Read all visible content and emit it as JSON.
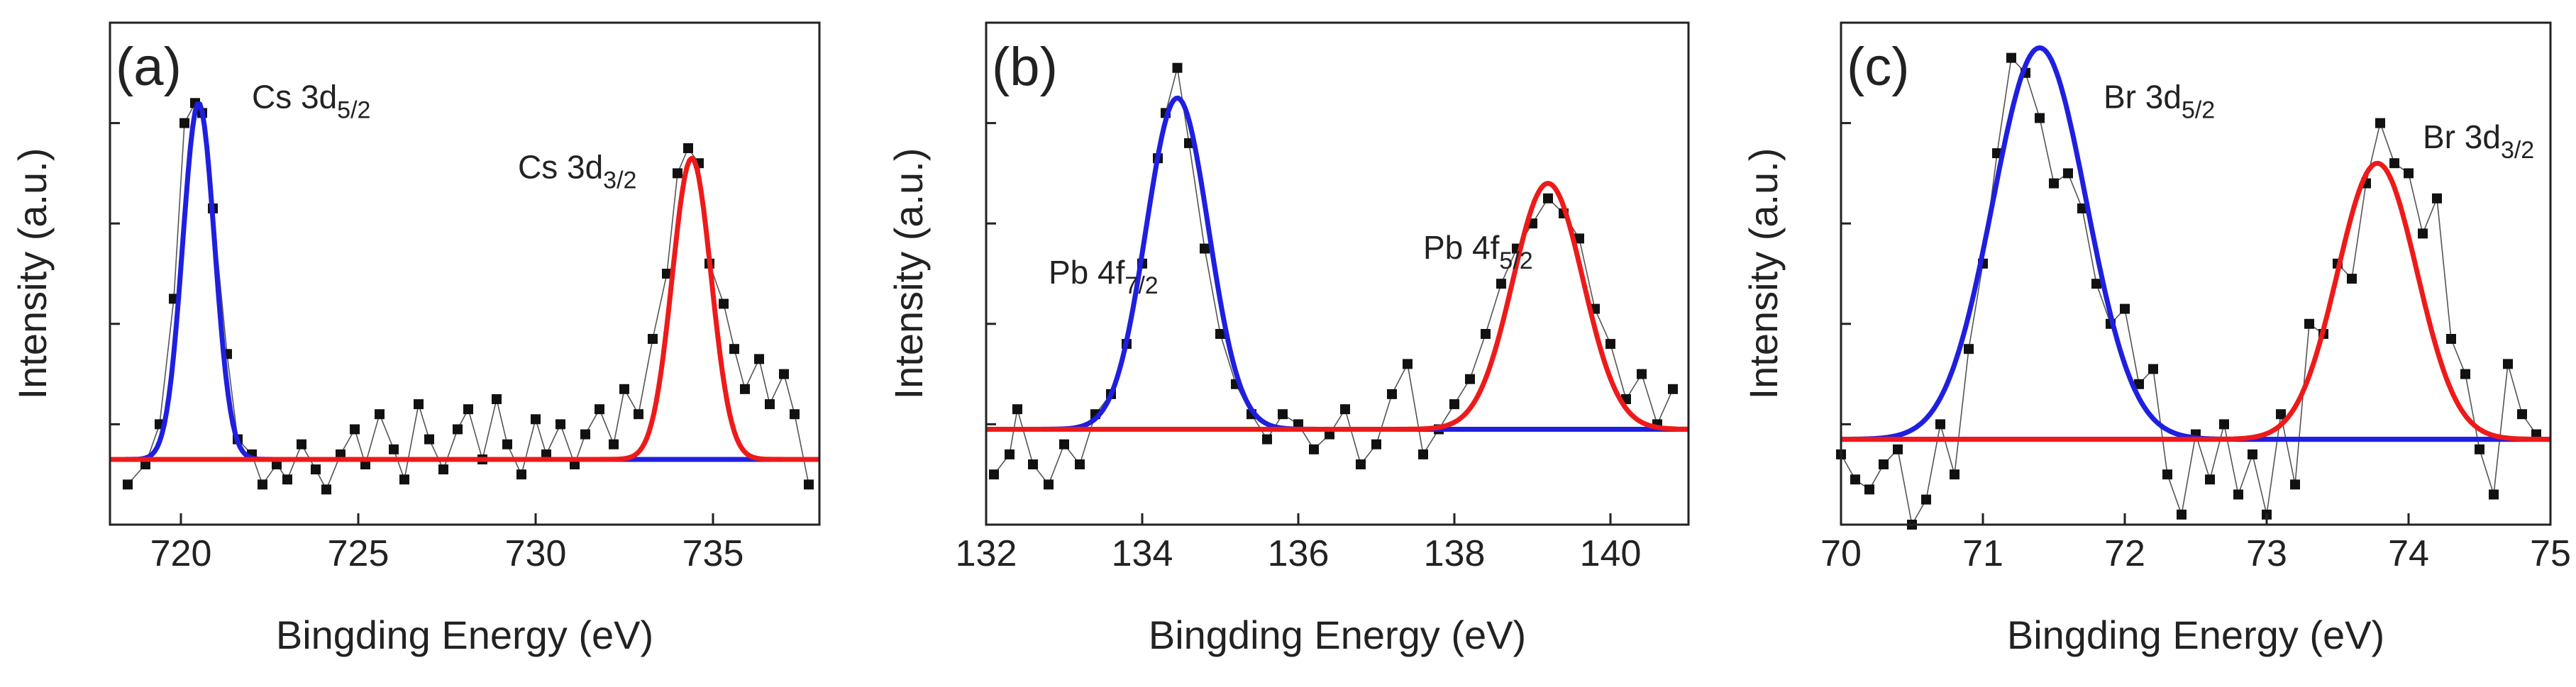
{
  "colors": {
    "fit1": "#1f1fe0",
    "fit2": "#ee1a1a",
    "baseline": "#1f1fe0",
    "points": "#111111",
    "connector": "#555555",
    "frame": "#222222"
  },
  "chart_data": [
    {
      "type": "scatter",
      "panel_label": "(a)",
      "xlabel": "Bingding Energy (eV)",
      "ylabel": "Intensity (a.u.)",
      "xlim": [
        718,
        738
      ],
      "ylim": [
        0,
        100
      ],
      "xticks": [
        720,
        725,
        730,
        735
      ],
      "xtick_labels": [
        "720",
        "725",
        "730",
        "735"
      ],
      "baseline": 13,
      "peaks": [
        {
          "name": "Cs 3d5/2",
          "base": "Cs 3d",
          "sub": "5/2",
          "center": 720.5,
          "height": 71,
          "sigma": 0.45,
          "color_key": "fit1",
          "label_x": 722.0,
          "label_y": 83
        },
        {
          "name": "Cs 3d3/2",
          "base": "Cs 3d",
          "sub": "3/2",
          "center": 734.4,
          "height": 60,
          "sigma": 0.55,
          "color_key": "fit2",
          "label_x": 729.5,
          "label_y": 69
        }
      ],
      "points": [
        [
          718.5,
          8
        ],
        [
          719.0,
          12
        ],
        [
          719.4,
          20
        ],
        [
          719.8,
          45
        ],
        [
          720.1,
          80
        ],
        [
          720.4,
          84
        ],
        [
          720.6,
          82
        ],
        [
          720.9,
          63
        ],
        [
          721.3,
          34
        ],
        [
          721.6,
          17
        ],
        [
          722.0,
          14
        ],
        [
          722.3,
          8
        ],
        [
          722.7,
          12
        ],
        [
          723.0,
          9
        ],
        [
          723.4,
          16
        ],
        [
          723.8,
          11
        ],
        [
          724.1,
          7
        ],
        [
          724.5,
          14
        ],
        [
          724.9,
          19
        ],
        [
          725.2,
          12
        ],
        [
          725.6,
          22
        ],
        [
          726.0,
          15
        ],
        [
          726.3,
          9
        ],
        [
          726.7,
          24
        ],
        [
          727.0,
          17
        ],
        [
          727.4,
          11
        ],
        [
          727.8,
          19
        ],
        [
          728.1,
          23
        ],
        [
          728.5,
          13
        ],
        [
          728.9,
          25
        ],
        [
          729.2,
          16
        ],
        [
          729.6,
          10
        ],
        [
          730.0,
          21
        ],
        [
          730.3,
          14
        ],
        [
          730.7,
          20
        ],
        [
          731.1,
          12
        ],
        [
          731.4,
          18
        ],
        [
          731.8,
          23
        ],
        [
          732.2,
          16
        ],
        [
          732.5,
          27
        ],
        [
          732.9,
          22
        ],
        [
          733.3,
          37
        ],
        [
          733.7,
          50
        ],
        [
          734.0,
          70
        ],
        [
          734.3,
          75
        ],
        [
          734.6,
          72
        ],
        [
          734.9,
          52
        ],
        [
          735.3,
          44
        ],
        [
          735.6,
          35
        ],
        [
          735.9,
          27
        ],
        [
          736.3,
          33
        ],
        [
          736.6,
          24
        ],
        [
          737.0,
          30
        ],
        [
          737.3,
          22
        ],
        [
          737.7,
          8
        ]
      ]
    },
    {
      "type": "scatter",
      "panel_label": "(b)",
      "xlabel": "Bingding Energy (eV)",
      "ylabel": "Intensity (a.u.)",
      "xlim": [
        132,
        141
      ],
      "ylim": [
        0,
        100
      ],
      "xticks": [
        132,
        134,
        136,
        138,
        140
      ],
      "xtick_labels": [
        "132",
        "134",
        "136",
        "138",
        "140"
      ],
      "baseline": 19,
      "peaks": [
        {
          "name": "Pb 4f7/2",
          "base": "Pb 4f",
          "sub": "7/2",
          "center": 134.45,
          "height": 66,
          "sigma": 0.4,
          "color_key": "fit1",
          "label_x": 132.8,
          "label_y": 48
        },
        {
          "name": "Pb 4f5/2",
          "base": "Pb 4f",
          "sub": "5/2",
          "center": 139.2,
          "height": 49,
          "sigma": 0.45,
          "color_key": "fit2",
          "label_x": 137.6,
          "label_y": 53
        }
      ],
      "points": [
        [
          132.1,
          10
        ],
        [
          132.3,
          14
        ],
        [
          132.4,
          23
        ],
        [
          132.6,
          12
        ],
        [
          132.8,
          8
        ],
        [
          133.0,
          16
        ],
        [
          133.2,
          12
        ],
        [
          133.4,
          22
        ],
        [
          133.6,
          26
        ],
        [
          133.8,
          36
        ],
        [
          134.0,
          52
        ],
        [
          134.2,
          73
        ],
        [
          134.3,
          82
        ],
        [
          134.45,
          91
        ],
        [
          134.6,
          76
        ],
        [
          134.8,
          55
        ],
        [
          135.0,
          38
        ],
        [
          135.2,
          28
        ],
        [
          135.4,
          22
        ],
        [
          135.6,
          17
        ],
        [
          135.8,
          22
        ],
        [
          136.0,
          20
        ],
        [
          136.2,
          15
        ],
        [
          136.4,
          18
        ],
        [
          136.6,
          23
        ],
        [
          136.8,
          12
        ],
        [
          137.0,
          16
        ],
        [
          137.2,
          26
        ],
        [
          137.4,
          32
        ],
        [
          137.6,
          14
        ],
        [
          137.8,
          19
        ],
        [
          138.0,
          24
        ],
        [
          138.2,
          29
        ],
        [
          138.4,
          38
        ],
        [
          138.6,
          48
        ],
        [
          138.8,
          55
        ],
        [
          139.0,
          60
        ],
        [
          139.2,
          65
        ],
        [
          139.4,
          62
        ],
        [
          139.6,
          57
        ],
        [
          139.8,
          43
        ],
        [
          140.0,
          36
        ],
        [
          140.2,
          25
        ],
        [
          140.4,
          30
        ],
        [
          140.6,
          20
        ],
        [
          140.8,
          27
        ]
      ]
    },
    {
      "type": "scatter",
      "panel_label": "(c)",
      "xlabel": "Bingding Energy (eV)",
      "ylabel": "Intensity (a.u.)",
      "xlim": [
        70,
        75
      ],
      "ylim": [
        0,
        100
      ],
      "xticks": [
        70,
        71,
        72,
        73,
        74,
        75
      ],
      "xtick_labels": [
        "70",
        "71",
        "72",
        "73",
        "74",
        "75"
      ],
      "baseline": 17,
      "peaks": [
        {
          "name": "Br 3d5/2",
          "base": "Br 3d",
          "sub": "5/2",
          "center": 71.4,
          "height": 78,
          "sigma": 0.33,
          "color_key": "fit1",
          "label_x": 71.85,
          "label_y": 83
        },
        {
          "name": "Br 3d3/2",
          "base": "Br 3d",
          "sub": "3/2",
          "center": 73.78,
          "height": 55,
          "sigma": 0.28,
          "color_key": "fit2",
          "label_x": 74.1,
          "label_y": 75
        }
      ],
      "points": [
        [
          70.0,
          14
        ],
        [
          70.1,
          9
        ],
        [
          70.2,
          7
        ],
        [
          70.3,
          12
        ],
        [
          70.4,
          15
        ],
        [
          70.5,
          0
        ],
        [
          70.6,
          5
        ],
        [
          70.7,
          20
        ],
        [
          70.8,
          10
        ],
        [
          70.9,
          35
        ],
        [
          71.0,
          52
        ],
        [
          71.1,
          74
        ],
        [
          71.2,
          93
        ],
        [
          71.3,
          90
        ],
        [
          71.4,
          81
        ],
        [
          71.5,
          68
        ],
        [
          71.6,
          70
        ],
        [
          71.7,
          63
        ],
        [
          71.8,
          48
        ],
        [
          71.9,
          40
        ],
        [
          72.0,
          43
        ],
        [
          72.1,
          28
        ],
        [
          72.2,
          31
        ],
        [
          72.3,
          10
        ],
        [
          72.4,
          2
        ],
        [
          72.5,
          18
        ],
        [
          72.6,
          9
        ],
        [
          72.7,
          20
        ],
        [
          72.8,
          6
        ],
        [
          72.9,
          14
        ],
        [
          73.0,
          2
        ],
        [
          73.1,
          22
        ],
        [
          73.2,
          8
        ],
        [
          73.3,
          40
        ],
        [
          73.4,
          38
        ],
        [
          73.5,
          52
        ],
        [
          73.6,
          49
        ],
        [
          73.7,
          68
        ],
        [
          73.8,
          80
        ],
        [
          73.9,
          72
        ],
        [
          74.0,
          70
        ],
        [
          74.1,
          58
        ],
        [
          74.2,
          65
        ],
        [
          74.3,
          37
        ],
        [
          74.4,
          30
        ],
        [
          74.5,
          15
        ],
        [
          74.6,
          6
        ],
        [
          74.7,
          32
        ],
        [
          74.8,
          22
        ],
        [
          74.9,
          18
        ]
      ]
    }
  ]
}
